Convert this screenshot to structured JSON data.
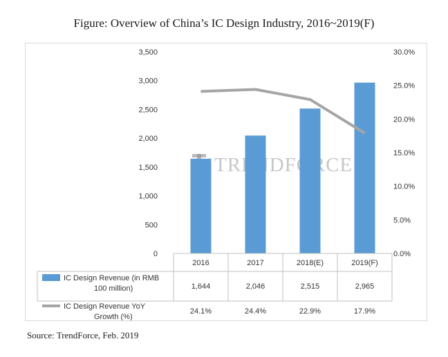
{
  "figure": {
    "title": "Figure: Overview of China’s IC Design Industry, 2016~2019(F)",
    "source": "Source: TrendForce, Feb. 2019",
    "watermark": "TRENDFORCE"
  },
  "chart_data": {
    "type": "bar",
    "categories": [
      "2016",
      "2017",
      "2018(E)",
      "2019(F)"
    ],
    "series": [
      {
        "name": "IC Design Revenue (in RMB 100 million)",
        "kind": "bar",
        "axis": "left",
        "color": "#5b9bd5",
        "values": [
          1644,
          2046,
          2515,
          2965
        ],
        "labels": [
          "1,644",
          "2,046",
          "2,515",
          "2,965"
        ]
      },
      {
        "name": "IC Design Revenue YoY Growth (%)",
        "kind": "line",
        "axis": "right",
        "color": "#a5a5a5",
        "values": [
          24.1,
          24.4,
          22.9,
          17.9
        ],
        "labels": [
          "24.1%",
          "24.4%",
          "22.9%",
          "17.9%"
        ]
      }
    ],
    "y_left": {
      "min": 0,
      "max": 3500,
      "ticks": [
        0,
        500,
        1000,
        1500,
        2000,
        2500,
        3000,
        3500
      ],
      "tick_labels": [
        "0",
        "500",
        "1,000",
        "1,500",
        "2,000",
        "2,500",
        "3,000",
        "3,500"
      ]
    },
    "y_right": {
      "min": 0,
      "max": 30,
      "ticks": [
        0,
        5,
        10,
        15,
        20,
        25,
        30
      ],
      "tick_labels": [
        "0.0%",
        "5.0%",
        "10.0%",
        "15.0%",
        "20.0%",
        "25.0%",
        "30.0%"
      ]
    },
    "legend": "data-table-below"
  }
}
